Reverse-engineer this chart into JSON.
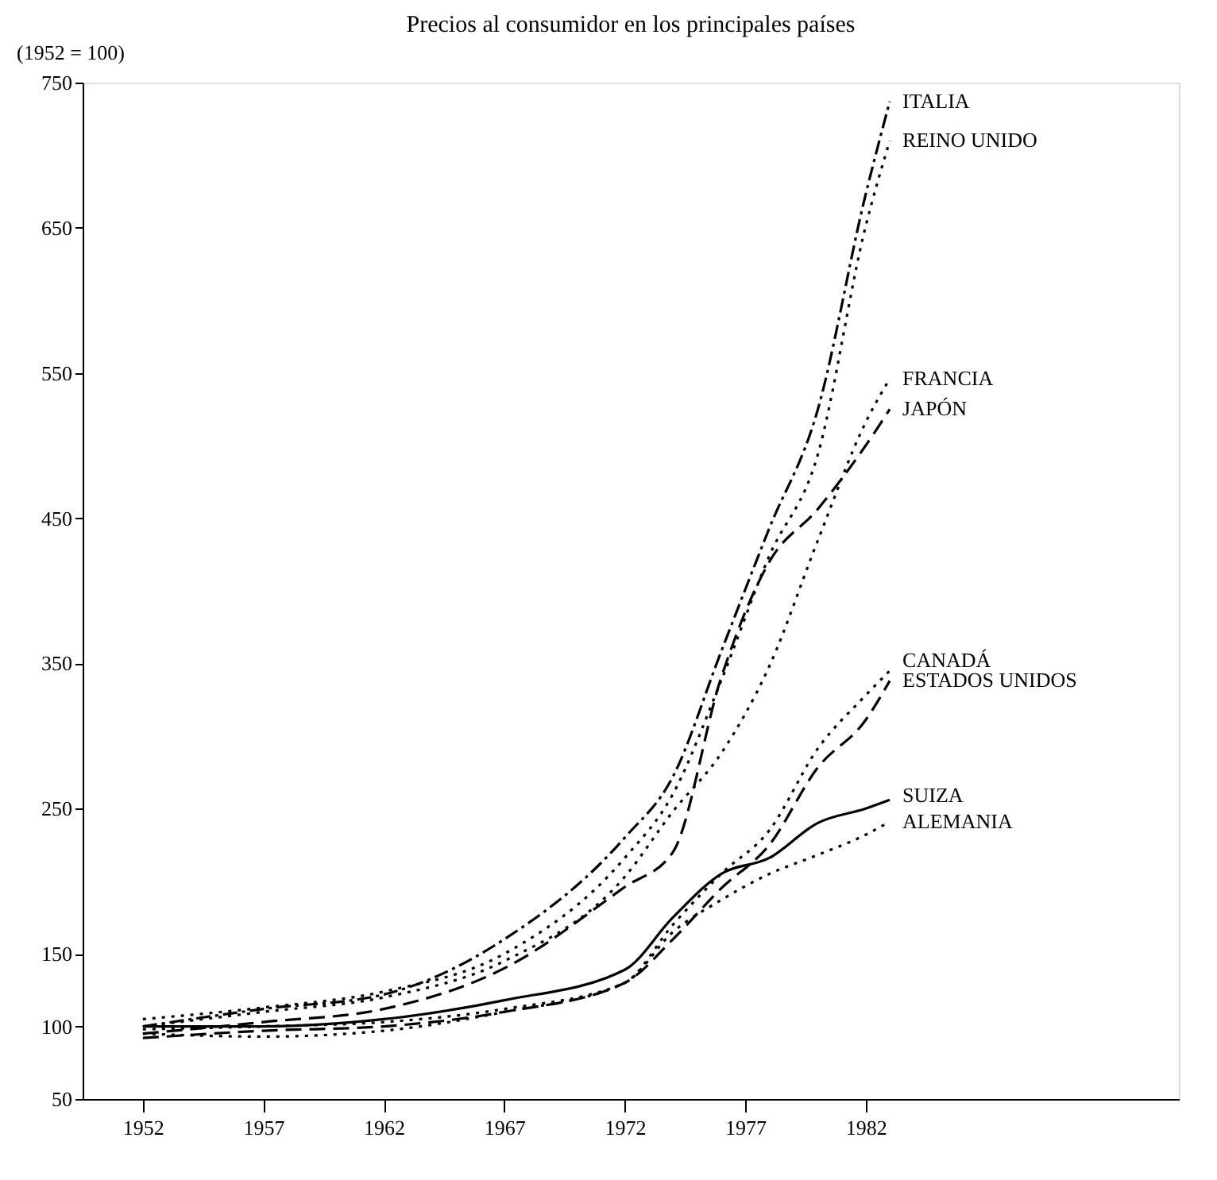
{
  "chart_data": {
    "type": "line",
    "title": "Precios al consumidor en los principales países",
    "ylabel": "(1952 = 100)",
    "xlim": [
      1949.5,
      1995
    ],
    "xticks": [
      1952,
      1957,
      1962,
      1967,
      1972,
      1977,
      1982
    ],
    "ylim": [
      50,
      750
    ],
    "yticks": [
      50,
      100,
      150,
      250,
      350,
      450,
      550,
      650,
      750
    ],
    "grid": false,
    "legend": false,
    "x": [
      1952,
      1957,
      1962,
      1967,
      1972,
      1974,
      1976,
      1978,
      1980,
      1982,
      1983
    ],
    "series": [
      {
        "name": "ITALIA",
        "color": "#000000",
        "line_style": "dashdot",
        "values": [
          100,
          112,
          122,
          160,
          230,
          272,
          358,
          443,
          524,
          673,
          737
        ]
      },
      {
        "name": "REINO UNIDO",
        "color": "#000000",
        "line_style": "dotted",
        "values": [
          105,
          113,
          124,
          150,
          216,
          260,
          338,
          424,
          493,
          651,
          710
        ]
      },
      {
        "name": "FRANCIA",
        "color": "#000000",
        "line_style": "dotted",
        "values": [
          100,
          110,
          120,
          145,
          203,
          248,
          288,
          348,
          434,
          516,
          546
        ]
      },
      {
        "name": "JAPÓN",
        "color": "#000000",
        "line_style": "dashed",
        "values": [
          95,
          103,
          112,
          140,
          196,
          220,
          340,
          420,
          456,
          500,
          525
        ]
      },
      {
        "name": "CANADÁ",
        "color": "#000000",
        "line_style": "dotted",
        "values": [
          95,
          93,
          97,
          110,
          130,
          170,
          205,
          235,
          291,
          328,
          345
        ]
      },
      {
        "name": "ESTADOS UNIDOS",
        "color": "#000000",
        "line_style": "dashed",
        "values": [
          92,
          97,
          100,
          110,
          130,
          160,
          195,
          225,
          278,
          311,
          338
        ]
      },
      {
        "name": "SUIZA",
        "color": "#000000",
        "line_style": "solid",
        "values": [
          100,
          100,
          105,
          118,
          139,
          175,
          205,
          216,
          240,
          250,
          256
        ]
      },
      {
        "name": "ALEMANIA",
        "color": "#000000",
        "line_style": "dotted",
        "values": [
          98,
          100,
          103,
          112,
          130,
          165,
          187,
          205,
          218,
          232,
          241
        ]
      }
    ]
  }
}
